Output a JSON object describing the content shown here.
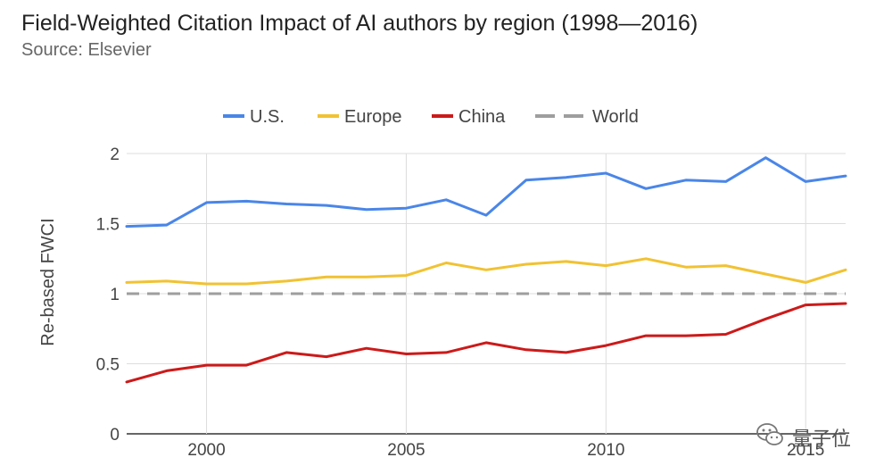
{
  "chart_data": {
    "type": "line",
    "title": "Field-Weighted Citation Impact of AI authors by region (1998—2016)",
    "subtitle": "Source: Elsevier",
    "xlabel": "",
    "ylabel": "Re-based FWCI",
    "x": [
      1998,
      1999,
      2000,
      2001,
      2002,
      2003,
      2004,
      2005,
      2006,
      2007,
      2008,
      2009,
      2010,
      2011,
      2012,
      2013,
      2014,
      2015,
      2016
    ],
    "xticks": [
      2000,
      2005,
      2010,
      2015
    ],
    "xlim": [
      1998,
      2016
    ],
    "ylim": [
      0,
      2
    ],
    "yticks": [
      0,
      0.5,
      1,
      1.5,
      2
    ],
    "grid": true,
    "legend_position": "top",
    "series": [
      {
        "name": "U.S.",
        "color": "#4a86e8",
        "dash": false,
        "values": [
          1.48,
          1.49,
          1.65,
          1.66,
          1.64,
          1.63,
          1.6,
          1.61,
          1.67,
          1.56,
          1.81,
          1.83,
          1.86,
          1.75,
          1.81,
          1.8,
          1.97,
          1.8,
          1.84
        ]
      },
      {
        "name": "Europe",
        "color": "#f1c232",
        "dash": false,
        "values": [
          1.08,
          1.09,
          1.07,
          1.07,
          1.09,
          1.12,
          1.12,
          1.13,
          1.22,
          1.17,
          1.21,
          1.23,
          1.2,
          1.25,
          1.19,
          1.2,
          1.14,
          1.08,
          1.17
        ]
      },
      {
        "name": "China",
        "color": "#cc1a1a",
        "dash": false,
        "values": [
          0.37,
          0.45,
          0.49,
          0.49,
          0.58,
          0.55,
          0.61,
          0.57,
          0.58,
          0.65,
          0.6,
          0.58,
          0.63,
          0.7,
          0.7,
          0.71,
          0.82,
          0.92,
          0.93
        ]
      },
      {
        "name": "World",
        "color": "#9e9e9e",
        "dash": true,
        "values": [
          1,
          1,
          1,
          1,
          1,
          1,
          1,
          1,
          1,
          1,
          1,
          1,
          1,
          1,
          1,
          1,
          1,
          1,
          1
        ]
      }
    ]
  },
  "watermark": {
    "text": "量子位",
    "logo_icon": "wechat-icon"
  }
}
